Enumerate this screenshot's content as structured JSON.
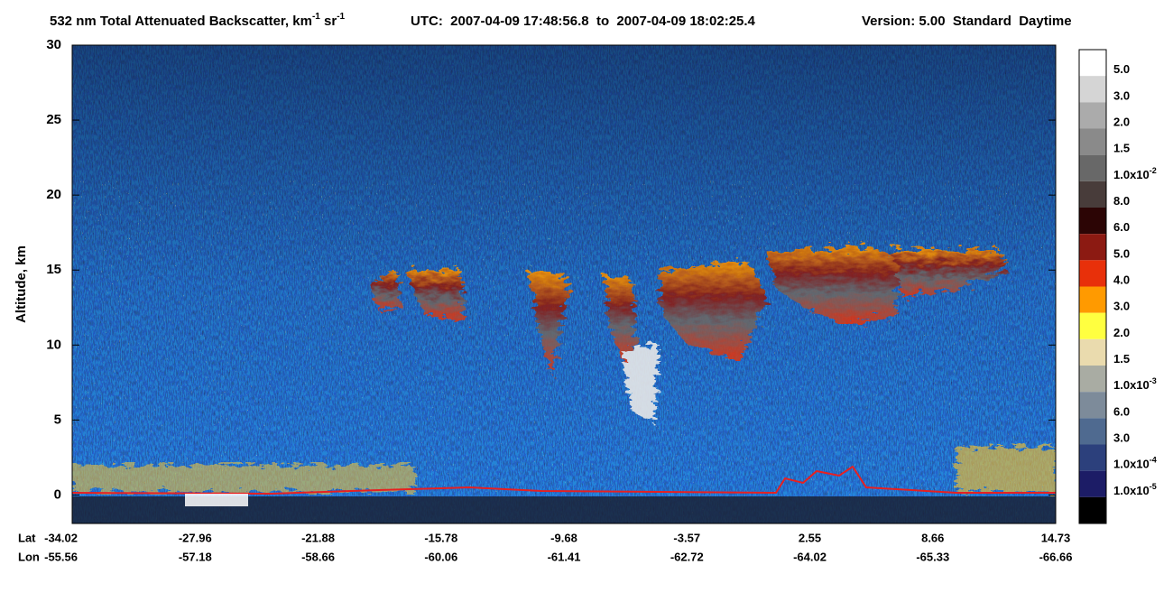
{
  "chart_data": {
    "type": "curtain",
    "title_parts": [
      "532 nm Total Attenuated Backscatter, km",
      "-1",
      " sr",
      "-1"
    ],
    "utc": "UTC:  2007-04-09 17:48:56.8  to  2007-04-09 18:02:25.4",
    "version": "Version: 5.00  Standard  Daytime",
    "y_label": "Altitude, km",
    "ylim": [
      -1.9,
      30
    ],
    "yticks": [
      0,
      5,
      10,
      15,
      20,
      25,
      30
    ],
    "x_rows": [
      {
        "name": "Lat",
        "values": [
          -34.02,
          -27.96,
          -21.88,
          -15.78,
          -9.68,
          -3.57,
          2.55,
          8.66,
          14.73
        ]
      },
      {
        "name": "Lon",
        "values": [
          -55.56,
          -57.18,
          -58.66,
          -60.06,
          -61.41,
          -62.72,
          -64.02,
          -65.33,
          -66.66
        ]
      }
    ],
    "colorbar": {
      "colors": [
        "#ffffff",
        "#d5d5d5",
        "#ababab",
        "#8a8a8a",
        "#686868",
        "#483c3a",
        "#2c0505",
        "#8c1a12",
        "#e8300a",
        "#ff9a00",
        "#ffff40",
        "#eadbae",
        "#a9aca3",
        "#7d8b9a",
        "#4f6a90",
        "#2c407c",
        "#1c1c66",
        "#000000"
      ],
      "labels": [
        {
          "text": "5.0"
        },
        {
          "text": "3.0"
        },
        {
          "text": "2.0"
        },
        {
          "text": "1.5"
        },
        {
          "text": "1.0x10",
          "sup": "-2"
        },
        {
          "text": "8.0"
        },
        {
          "text": "6.0"
        },
        {
          "text": "5.0"
        },
        {
          "text": "4.0"
        },
        {
          "text": "3.0"
        },
        {
          "text": "2.0"
        },
        {
          "text": "1.5"
        },
        {
          "text": "1.0x10",
          "sup": "-3"
        },
        {
          "text": "6.0"
        },
        {
          "text": "3.0"
        },
        {
          "text": "1.0x10",
          "sup": "-4"
        },
        {
          "text": "1.0x10",
          "sup": "-5"
        }
      ]
    }
  }
}
